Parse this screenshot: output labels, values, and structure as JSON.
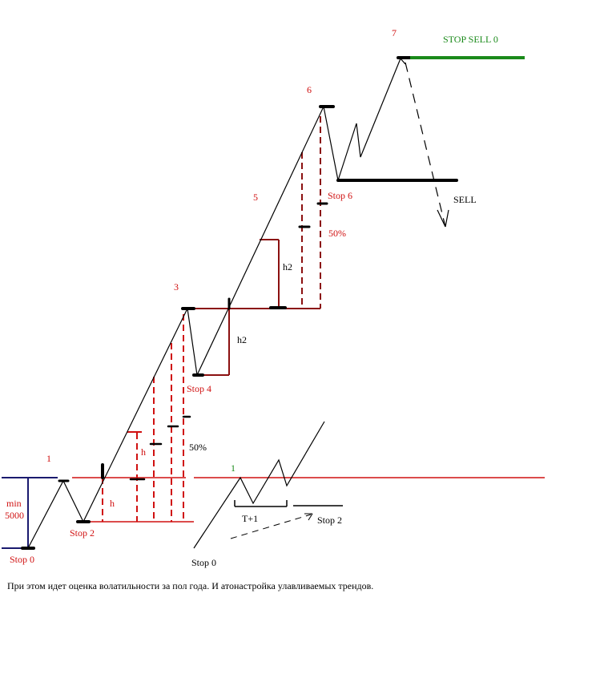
{
  "labels": {
    "wave_1": "1",
    "wave_3": "3",
    "wave_5": "5",
    "wave_6": "6",
    "wave_7": "7",
    "min": "min",
    "min_value": "5000",
    "stop_0": "Stop 0",
    "stop_2": "Stop 2",
    "stop_4": "Stop 4",
    "stop_6": "Stop 6",
    "h_lower": "h",
    "h_upper": "h",
    "h2_lower": "h2",
    "h2_upper": "h2",
    "pct_lower": "50%",
    "pct_upper": "50%",
    "stop_sell_0": "STOP SELL 0",
    "sell": "SELL"
  },
  "inset": {
    "wave_1": "1",
    "t_plus_1": "T+1",
    "stop_0": "Stop 0",
    "stop_2": "Stop 2"
  },
  "caption": "При этом идет оценка волатильности за пол года. И атонастройка улавливаемых трендов.",
  "colors": {
    "line": "#000000",
    "red": "#d01010",
    "darkred": "#8b1010",
    "green": "#1a8a1a",
    "navy": "#1a1a6e"
  }
}
